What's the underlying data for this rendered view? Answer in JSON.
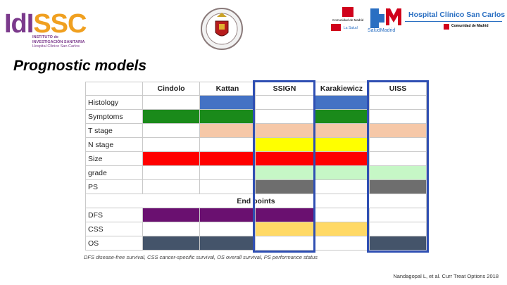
{
  "header": {
    "idissc": {
      "brand_part1": "IdI",
      "brand_part2": "SSC",
      "line1": "INSTITUTO de",
      "line2": "INVESTIGACIÓN SANITARIA",
      "line3": "Hospital Clínico San Carlos"
    },
    "seal_name": "university-seal",
    "madrid_logo_text": "Comunidad de Madrid",
    "salud_madrid_text": "SaludMadrid",
    "hospital_name": "Hospital Clínico San Carlos",
    "comunidad_text": "Comunidad de Madrid"
  },
  "slide": {
    "title": "Prognostic models"
  },
  "table": {
    "columns": [
      "",
      "Cindolo",
      "Kattan",
      "SSIGN",
      "Karakiewicz",
      "UISS"
    ],
    "rows": [
      {
        "label": "Histology",
        "cells": [
          "",
          "#4472c4",
          "",
          "#4472c4",
          ""
        ]
      },
      {
        "label": "Symptoms",
        "cells": [
          "#1a8a1a",
          "#1a8a1a",
          "",
          "#1a8a1a",
          ""
        ]
      },
      {
        "label": "T stage",
        "cells": [
          "",
          "#f6c8a8",
          "#f6c8a8",
          "#f6c8a8",
          "#f6c8a8"
        ]
      },
      {
        "label": "N stage",
        "cells": [
          "",
          "",
          "#ffff00",
          "#ffff00",
          ""
        ]
      },
      {
        "label": "Size",
        "cells": [
          "#ff0000",
          "#ff0000",
          "#ff0000",
          "#ff0000",
          ""
        ]
      },
      {
        "label": "grade",
        "cells": [
          "",
          "",
          "#c6f7c6",
          "#c6f7c6",
          "#c6f7c6"
        ]
      },
      {
        "label": "PS",
        "cells": [
          "",
          "",
          "#6e6e6e",
          "",
          "#6e6e6e"
        ]
      }
    ],
    "endpoints_label": "End points",
    "endpoint_rows": [
      {
        "label": "DFS",
        "cells": [
          "#6a1070",
          "#6a1070",
          "#6a1070",
          "",
          ""
        ]
      },
      {
        "label": "CSS",
        "cells": [
          "",
          "",
          "#ffd966",
          "#ffd966",
          ""
        ]
      },
      {
        "label": "OS",
        "cells": [
          "#44546a",
          "#44546a",
          "",
          "",
          "#44546a"
        ]
      }
    ],
    "highlight_color": "#2f4fb3",
    "caption": "DFS disease-free survival, CSS cancer-specific survival, OS overall survival, PS performance status"
  },
  "citation": "Nandagopal L, et al. Curr Treat Options 2018"
}
